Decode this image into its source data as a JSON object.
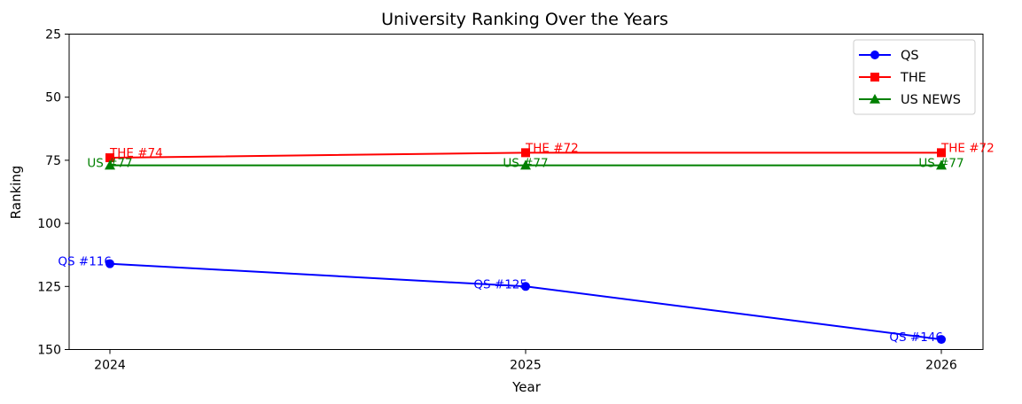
{
  "chart_data": {
    "type": "line",
    "title": "University Ranking Over the Years",
    "xlabel": "Year",
    "ylabel": "Ranking",
    "x": [
      2024,
      2025,
      2026
    ],
    "x_ticks": [
      "2024",
      "2025",
      "2026"
    ],
    "ylim": [
      150,
      25
    ],
    "y_inverted": true,
    "y_ticks": [
      "25",
      "50",
      "75",
      "100",
      "125",
      "150"
    ],
    "grid": false,
    "legend_position": "top-right",
    "series": [
      {
        "name": "QS",
        "color": "#0000ff",
        "marker": "circle",
        "values": [
          116,
          125,
          146
        ],
        "labels": [
          "QS #116",
          "QS #125",
          "QS #146"
        ]
      },
      {
        "name": "THE",
        "color": "#ff0000",
        "marker": "square",
        "values": [
          74,
          72,
          72
        ],
        "labels": [
          "THE #74",
          "THE #72",
          "THE #72"
        ]
      },
      {
        "name": "US NEWS",
        "color": "#008000",
        "marker": "triangle",
        "values": [
          77,
          77,
          77
        ],
        "labels": [
          "US #77",
          "US #77",
          "US #77"
        ]
      }
    ]
  }
}
